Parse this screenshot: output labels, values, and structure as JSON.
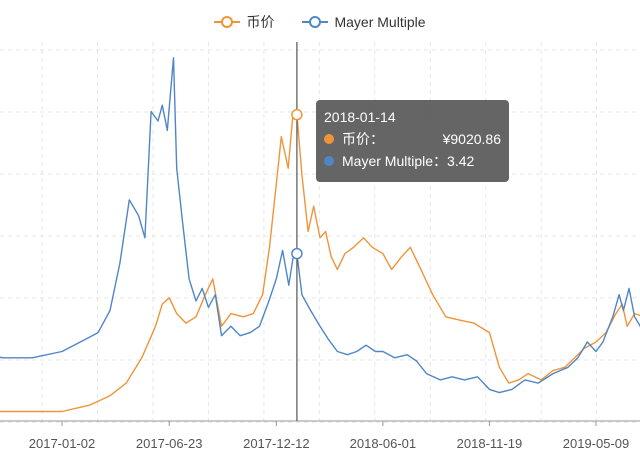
{
  "legend": {
    "price_label": "币价",
    "mayer_label": "Mayer Multiple"
  },
  "tooltip": {
    "date": "2018-01-14",
    "price_label": "币价：",
    "price_value": "¥9020.86",
    "mayer_label": "Mayer Multiple：",
    "mayer_value": "3.42"
  },
  "colors": {
    "price": "#f0943a",
    "mayer": "#4f86c6",
    "tooltip_bg": "#505050"
  },
  "chart_data": {
    "type": "line",
    "x_ticks": [
      "2017-01-02",
      "2017-06-23",
      "2017-12-12",
      "2018-06-01",
      "2018-11-19",
      "2019-05-09"
    ],
    "grid": true,
    "legend_position": "top-center",
    "crosshair_date": "2018-01-14",
    "series": [
      {
        "name": "币价",
        "points": [
          [
            "2016-07-01",
            0.03
          ],
          [
            "2016-09-01",
            0.03
          ],
          [
            "2016-11-01",
            0.03
          ],
          [
            "2017-01-02",
            0.03
          ],
          [
            "2017-02-15",
            0.05
          ],
          [
            "2017-03-20",
            0.08
          ],
          [
            "2017-04-15",
            0.12
          ],
          [
            "2017-05-10",
            0.2
          ],
          [
            "2017-06-01",
            0.3
          ],
          [
            "2017-06-12",
            0.37
          ],
          [
            "2017-06-23",
            0.39
          ],
          [
            "2017-07-05",
            0.34
          ],
          [
            "2017-07-20",
            0.31
          ],
          [
            "2017-08-05",
            0.33
          ],
          [
            "2017-08-20",
            0.4
          ],
          [
            "2017-09-01",
            0.45
          ],
          [
            "2017-09-15",
            0.3
          ],
          [
            "2017-09-30",
            0.34
          ],
          [
            "2017-10-20",
            0.33
          ],
          [
            "2017-11-05",
            0.34
          ],
          [
            "2017-11-20",
            0.4
          ],
          [
            "2017-12-01",
            0.55
          ],
          [
            "2017-12-12",
            0.75
          ],
          [
            "2017-12-20",
            0.9
          ],
          [
            "2017-12-31",
            0.8
          ],
          [
            "2018-01-08",
            0.98
          ],
          [
            "2018-01-14",
            0.97
          ],
          [
            "2018-01-22",
            0.78
          ],
          [
            "2018-02-01",
            0.6
          ],
          [
            "2018-02-10",
            0.68
          ],
          [
            "2018-02-20",
            0.58
          ],
          [
            "2018-03-01",
            0.6
          ],
          [
            "2018-03-10",
            0.52
          ],
          [
            "2018-03-20",
            0.48
          ],
          [
            "2018-04-01",
            0.53
          ],
          [
            "2018-04-15",
            0.55
          ],
          [
            "2018-05-01",
            0.58
          ],
          [
            "2018-05-15",
            0.55
          ],
          [
            "2018-06-01",
            0.53
          ],
          [
            "2018-06-15",
            0.48
          ],
          [
            "2018-07-01",
            0.52
          ],
          [
            "2018-07-15",
            0.55
          ],
          [
            "2018-08-01",
            0.48
          ],
          [
            "2018-08-20",
            0.4
          ],
          [
            "2018-09-10",
            0.33
          ],
          [
            "2018-10-01",
            0.32
          ],
          [
            "2018-10-25",
            0.31
          ],
          [
            "2018-11-19",
            0.28
          ],
          [
            "2018-12-05",
            0.17
          ],
          [
            "2018-12-20",
            0.12
          ],
          [
            "2019-01-05",
            0.13
          ],
          [
            "2019-01-20",
            0.15
          ],
          [
            "2019-02-10",
            0.13
          ],
          [
            "2019-03-01",
            0.16
          ],
          [
            "2019-03-20",
            0.17
          ],
          [
            "2019-04-05",
            0.2
          ],
          [
            "2019-04-20",
            0.23
          ],
          [
            "2019-05-09",
            0.25
          ],
          [
            "2019-05-25",
            0.28
          ],
          [
            "2019-06-10",
            0.34
          ],
          [
            "2019-06-20",
            0.37
          ],
          [
            "2019-06-28",
            0.3
          ],
          [
            "2019-07-10",
            0.34
          ],
          [
            "2019-07-25",
            0.33
          ]
        ]
      },
      {
        "name": "Mayer Multiple",
        "points": [
          [
            "2016-07-01",
            0.26
          ],
          [
            "2016-08-15",
            0.21
          ],
          [
            "2016-10-01",
            0.2
          ],
          [
            "2016-11-15",
            0.2
          ],
          [
            "2017-01-02",
            0.22
          ],
          [
            "2017-02-10",
            0.26
          ],
          [
            "2017-03-01",
            0.28
          ],
          [
            "2017-03-20",
            0.35
          ],
          [
            "2017-04-05",
            0.5
          ],
          [
            "2017-04-20",
            0.7
          ],
          [
            "2017-05-05",
            0.65
          ],
          [
            "2017-05-15",
            0.58
          ],
          [
            "2017-05-25",
            0.98
          ],
          [
            "2017-06-05",
            0.95
          ],
          [
            "2017-06-12",
            1.0
          ],
          [
            "2017-06-20",
            0.92
          ],
          [
            "2017-06-30",
            1.15
          ],
          [
            "2017-07-05",
            0.8
          ],
          [
            "2017-07-15",
            0.62
          ],
          [
            "2017-07-25",
            0.45
          ],
          [
            "2017-08-05",
            0.38
          ],
          [
            "2017-08-15",
            0.42
          ],
          [
            "2017-08-25",
            0.36
          ],
          [
            "2017-09-05",
            0.4
          ],
          [
            "2017-09-15",
            0.27
          ],
          [
            "2017-09-30",
            0.3
          ],
          [
            "2017-10-15",
            0.27
          ],
          [
            "2017-10-31",
            0.28
          ],
          [
            "2017-11-15",
            0.3
          ],
          [
            "2017-11-30",
            0.38
          ],
          [
            "2017-12-12",
            0.45
          ],
          [
            "2017-12-22",
            0.54
          ],
          [
            "2018-01-01",
            0.43
          ],
          [
            "2018-01-08",
            0.52
          ],
          [
            "2018-01-14",
            0.53
          ],
          [
            "2018-01-22",
            0.4
          ],
          [
            "2018-02-05",
            0.35
          ],
          [
            "2018-02-20",
            0.3
          ],
          [
            "2018-03-05",
            0.26
          ],
          [
            "2018-03-20",
            0.22
          ],
          [
            "2018-04-05",
            0.21
          ],
          [
            "2018-04-20",
            0.22
          ],
          [
            "2018-05-05",
            0.24
          ],
          [
            "2018-05-20",
            0.22
          ],
          [
            "2018-06-01",
            0.22
          ],
          [
            "2018-06-20",
            0.2
          ],
          [
            "2018-07-10",
            0.21
          ],
          [
            "2018-07-25",
            0.19
          ],
          [
            "2018-08-10",
            0.15
          ],
          [
            "2018-09-01",
            0.13
          ],
          [
            "2018-09-20",
            0.14
          ],
          [
            "2018-10-10",
            0.13
          ],
          [
            "2018-10-31",
            0.14
          ],
          [
            "2018-11-19",
            0.1
          ],
          [
            "2018-12-05",
            0.09
          ],
          [
            "2018-12-25",
            0.1
          ],
          [
            "2019-01-15",
            0.13
          ],
          [
            "2019-02-05",
            0.12
          ],
          [
            "2019-03-01",
            0.15
          ],
          [
            "2019-03-25",
            0.17
          ],
          [
            "2019-04-10",
            0.2
          ],
          [
            "2019-04-25",
            0.25
          ],
          [
            "2019-05-09",
            0.22
          ],
          [
            "2019-05-20",
            0.25
          ],
          [
            "2019-06-05",
            0.33
          ],
          [
            "2019-06-15",
            0.4
          ],
          [
            "2019-06-22",
            0.35
          ],
          [
            "2019-07-01",
            0.42
          ],
          [
            "2019-07-10",
            0.33
          ],
          [
            "2019-07-25",
            0.28
          ]
        ]
      }
    ]
  }
}
